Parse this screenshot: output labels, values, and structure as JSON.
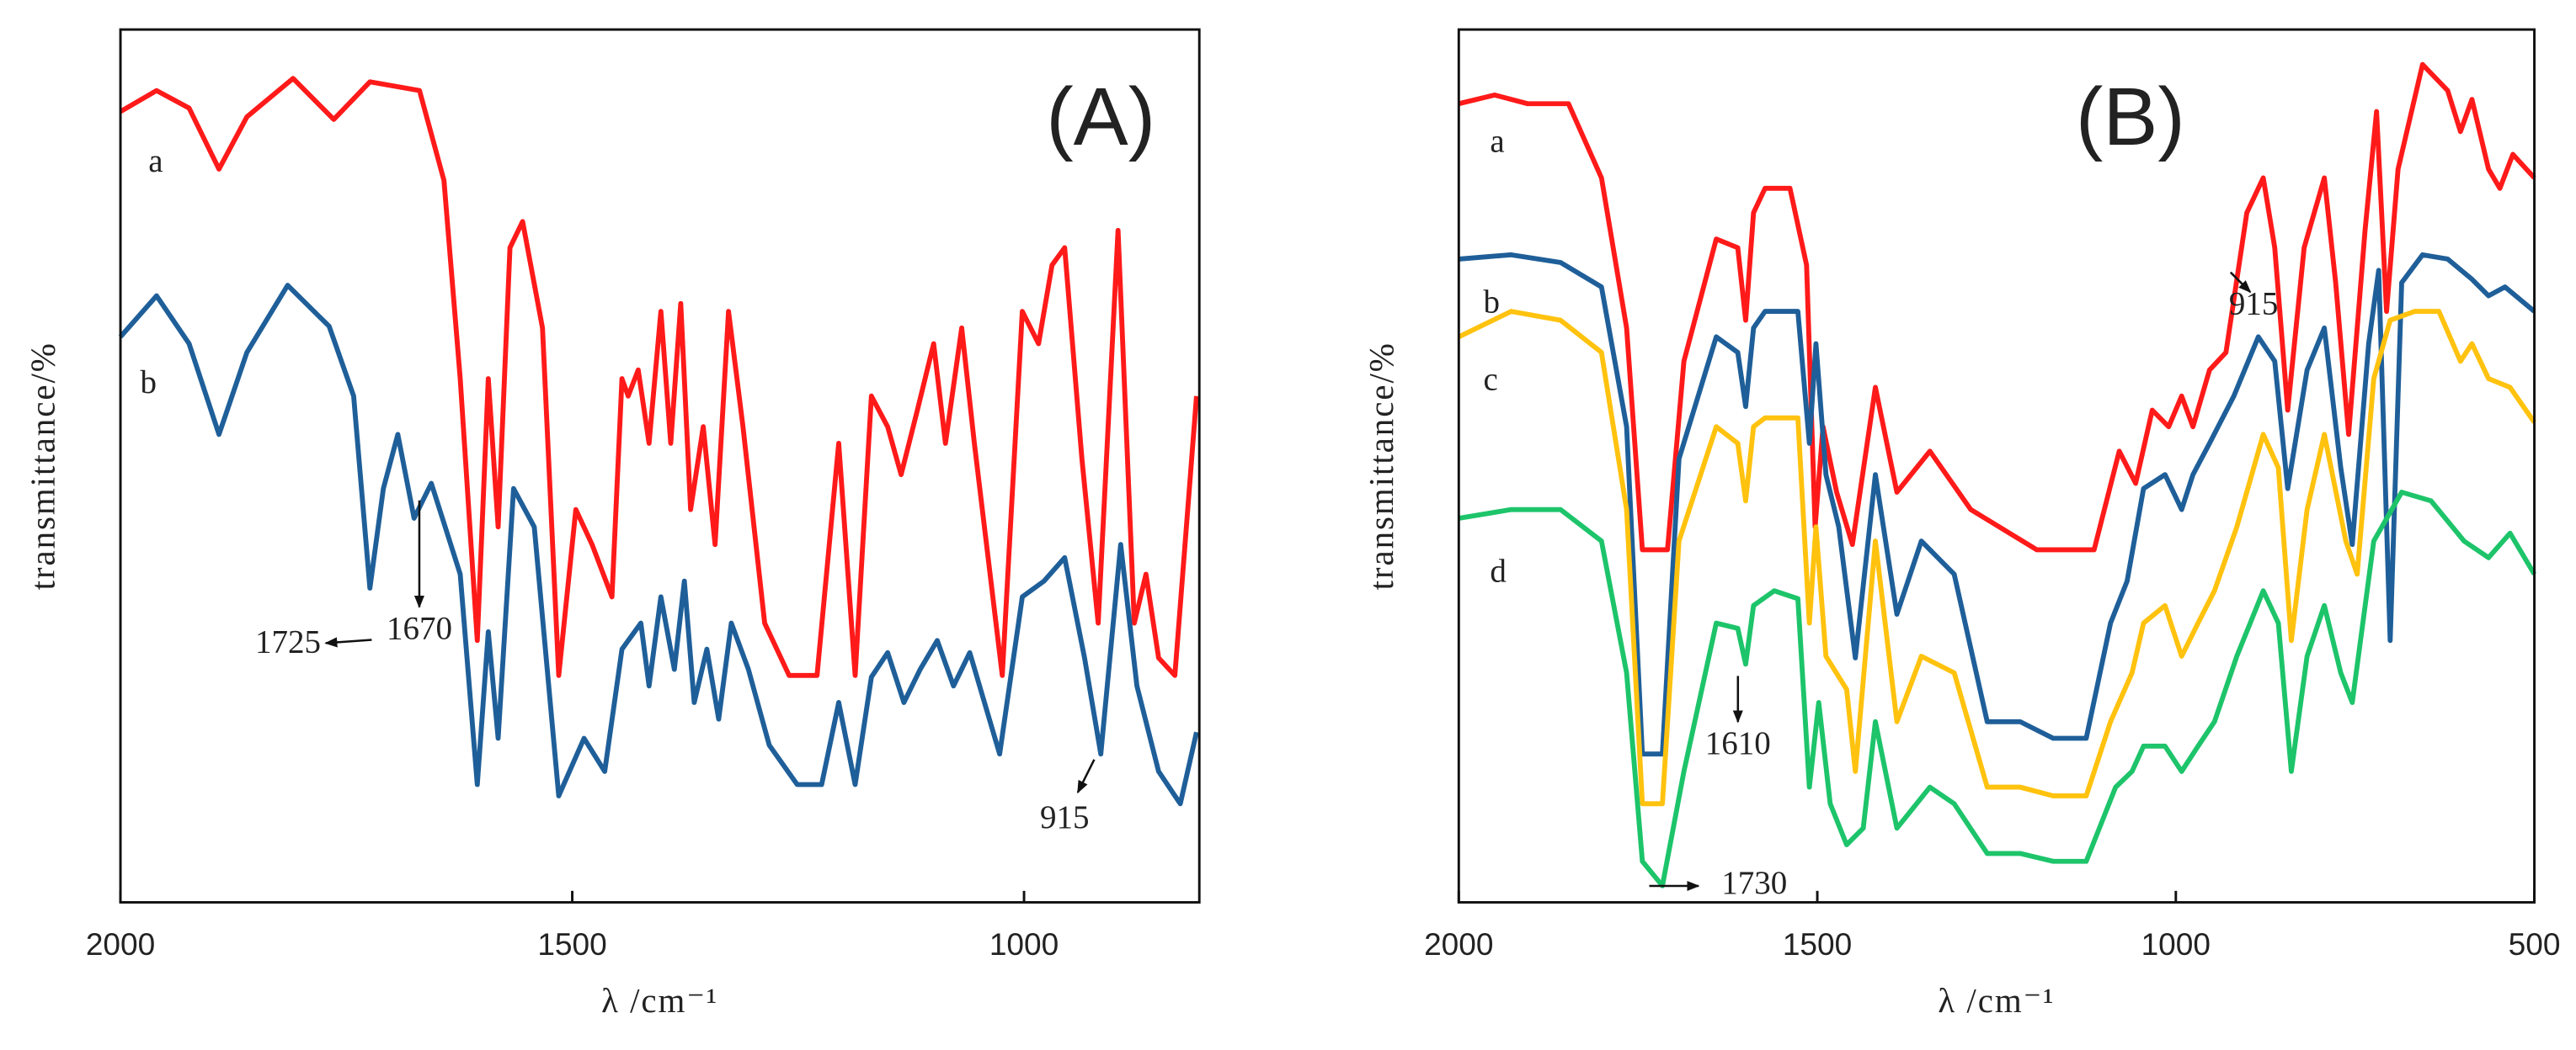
{
  "chart_data": [
    {
      "type": "line",
      "x_label": "λ /cm⁻¹",
      "y_label": "transmittance/%",
      "xlim": [
        2000,
        806
      ],
      "xticks": [
        2000,
        1500,
        1000
      ],
      "ylim": [
        0,
        100
      ],
      "annotations": [
        "(A)",
        "1725",
        "1670",
        "915"
      ],
      "series": [
        {
          "name": "a",
          "color": "#ff1a1a",
          "x": [
            2000,
            1960,
            1924,
            1891,
            1860,
            1809,
            1764,
            1724,
            1669,
            1642,
            1624,
            1605,
            1593,
            1582,
            1569,
            1555,
            1533,
            1515,
            1496,
            1478,
            1456,
            1445,
            1438,
            1427,
            1415,
            1402,
            1391,
            1380,
            1369,
            1355,
            1342,
            1327,
            1311,
            1287,
            1260,
            1229,
            1205,
            1187,
            1169,
            1151,
            1136,
            1118,
            1100,
            1087,
            1069,
            1055,
            1024,
            1002,
            984,
            969,
            955,
            936,
            918,
            896,
            878,
            865,
            851,
            833,
            809
          ],
          "values": [
            90.6,
            93,
            91,
            84,
            90,
            94.4,
            89.7,
            94,
            93,
            82.7,
            60,
            30,
            60,
            43,
            75,
            78,
            65.8,
            26,
            45,
            41,
            35,
            60,
            58,
            61,
            52.6,
            67.7,
            52.6,
            68.6,
            45,
            54.5,
            41,
            67.7,
            54.5,
            32,
            26,
            26,
            52.6,
            26,
            58,
            54.5,
            49,
            56.4,
            64,
            52.6,
            65.8,
            52.6,
            26,
            67.7,
            64,
            73,
            75,
            50.8,
            32,
            77,
            32,
            37.6,
            28,
            26,
            58
          ]
        },
        {
          "name": "b",
          "color": "#1f5f99",
          "x": [
            2000,
            1960,
            1924,
            1891,
            1860,
            1815,
            1769,
            1742,
            1724,
            1709,
            1693,
            1675,
            1656,
            1624,
            1605,
            1593,
            1582,
            1565,
            1542,
            1515,
            1487,
            1464,
            1445,
            1424,
            1415,
            1402,
            1387,
            1376,
            1365,
            1351,
            1338,
            1324,
            1305,
            1282,
            1251,
            1224,
            1205,
            1187,
            1169,
            1151,
            1133,
            1115,
            1096,
            1078,
            1060,
            1027,
            1002,
            978,
            955,
            933,
            915,
            893,
            875,
            851,
            827,
            809
          ],
          "values": [
            64.8,
            69.5,
            64,
            53.6,
            63,
            70.7,
            66,
            58,
            36,
            47.4,
            53.6,
            44,
            48,
            37.6,
            13.5,
            31,
            18.8,
            47.4,
            43,
            12.2,
            18.8,
            15,
            29,
            32,
            24.8,
            35,
            26.7,
            36.8,
            22.9,
            29,
            21,
            32,
            26.7,
            18,
            13.5,
            13.5,
            22.9,
            13.5,
            25.8,
            28.6,
            22.9,
            26.7,
            30,
            24.8,
            28.6,
            17,
            35,
            36.8,
            39.5,
            28,
            17,
            41,
            24.8,
            15,
            11.3,
            19.5
          ]
        }
      ]
    },
    {
      "type": "line",
      "x_label": "λ /cm⁻¹",
      "y_label": "transmittance/%",
      "xlim": [
        2000,
        500
      ],
      "xticks": [
        2000,
        1500,
        1000,
        500
      ],
      "ylim": [
        0,
        100
      ],
      "annotations": [
        "(B)",
        "915",
        "1610",
        "1730"
      ],
      "series": [
        {
          "name": "a",
          "color": "#ff1a1a",
          "x": [
            2000,
            1950,
            1904,
            1847,
            1801,
            1766,
            1744,
            1709,
            1686,
            1641,
            1611,
            1600,
            1589,
            1573,
            1538,
            1515,
            1503,
            1492,
            1473,
            1451,
            1419,
            1389,
            1343,
            1286,
            1194,
            1114,
            1079,
            1056,
            1033,
            1010,
            992,
            976,
            953,
            930,
            901,
            878,
            862,
            844,
            821,
            793,
            777,
            759,
            736,
            720,
            706,
            690,
            656,
            621,
            603,
            587,
            564,
            548,
            530,
            500
          ],
          "values": [
            91.5,
            92.5,
            91.5,
            91.5,
            83,
            65.8,
            40.4,
            40.4,
            62,
            76,
            75,
            66.7,
            79,
            81.8,
            81.8,
            73,
            43,
            54.5,
            47,
            41,
            59,
            47,
            51.7,
            45,
            40.4,
            40.4,
            51.7,
            48,
            56.4,
            54.5,
            58,
            54.5,
            61,
            63,
            79,
            83,
            75,
            56.4,
            75,
            83,
            71,
            53.6,
            77,
            90.6,
            67.7,
            84,
            96,
            93,
            88.3,
            92,
            84,
            81.8,
            85.7,
            83
          ]
        },
        {
          "name": "b",
          "color": "#1f5f99",
          "x": [
            2000,
            1927,
            1858,
            1801,
            1766,
            1744,
            1716,
            1693,
            1641,
            1611,
            1600,
            1589,
            1573,
            1527,
            1511,
            1502,
            1488,
            1470,
            1447,
            1419,
            1389,
            1355,
            1309,
            1263,
            1217,
            1171,
            1125,
            1091,
            1068,
            1045,
            1015,
            992,
            976,
            953,
            919,
            885,
            862,
            844,
            817,
            793,
            770,
            754,
            731,
            717,
            701,
            685,
            656,
            621,
            587,
            564,
            541,
            500
          ],
          "values": [
            73.7,
            74.2,
            73.3,
            70.5,
            54.5,
            17,
            17,
            50.8,
            64.8,
            63,
            56.8,
            65.8,
            67.7,
            67.7,
            52.6,
            64,
            49,
            43,
            28,
            49,
            33,
            41.4,
            37.6,
            20.7,
            20.7,
            18.8,
            18.8,
            32,
            36.8,
            47.4,
            49,
            45,
            49,
            52.6,
            58,
            64.8,
            62,
            47.4,
            61,
            65.8,
            49.8,
            41,
            64,
            72.4,
            30,
            71,
            74.2,
            73.7,
            71.4,
            69.5,
            70.5,
            67.7
          ]
        },
        {
          "name": "c",
          "color": "#ffc20e",
          "x": [
            2000,
            1927,
            1858,
            1801,
            1766,
            1744,
            1716,
            1693,
            1641,
            1611,
            1600,
            1589,
            1573,
            1527,
            1511,
            1502,
            1488,
            1459,
            1447,
            1419,
            1389,
            1355,
            1309,
            1263,
            1217,
            1171,
            1125,
            1091,
            1061,
            1045,
            1015,
            992,
            969,
            946,
            915,
            878,
            857,
            839,
            817,
            793,
            763,
            747,
            724,
            701,
            667,
            633,
            603,
            587,
            564,
            534,
            500
          ],
          "values": [
            64.8,
            67.7,
            66.7,
            63,
            45,
            11.3,
            11.3,
            41.4,
            54.5,
            52.6,
            46,
            54.5,
            55.5,
            55.5,
            32,
            43,
            28.2,
            24.4,
            15,
            41.4,
            20.7,
            28.2,
            26.3,
            13.2,
            13.2,
            12.2,
            12.2,
            20.7,
            26.3,
            32,
            34,
            28.2,
            32,
            35.7,
            43,
            53.6,
            49.8,
            30,
            45,
            53.6,
            41.4,
            37.6,
            60,
            66.7,
            67.7,
            67.7,
            62,
            64,
            60,
            59,
            55
          ]
        },
        {
          "name": "d",
          "color": "#1dc46a",
          "x": [
            2000,
            1927,
            1858,
            1801,
            1766,
            1744,
            1716,
            1686,
            1641,
            1611,
            1600,
            1589,
            1560,
            1527,
            1511,
            1498,
            1482,
            1459,
            1436,
            1419,
            1389,
            1343,
            1309,
            1263,
            1217,
            1171,
            1125,
            1084,
            1061,
            1045,
            1015,
            992,
            969,
            946,
            915,
            878,
            857,
            839,
            817,
            793,
            770,
            754,
            724,
            685,
            644,
            598,
            564,
            534,
            500
          ],
          "values": [
            44,
            45,
            45,
            41.4,
            26.3,
            4.7,
            1.9,
            15,
            32,
            31.4,
            27.3,
            34,
            35.7,
            34.8,
            13.2,
            22.9,
            11.3,
            6.6,
            8.5,
            20.7,
            8.5,
            13.2,
            11.3,
            5.6,
            5.6,
            4.7,
            4.7,
            13.2,
            15,
            17.9,
            17.9,
            15,
            17.9,
            20.7,
            28.2,
            35.7,
            32,
            15,
            28.2,
            34,
            26.3,
            22.9,
            41.4,
            47,
            46,
            41.4,
            39.5,
            42.3,
            37.6
          ]
        }
      ]
    }
  ]
}
